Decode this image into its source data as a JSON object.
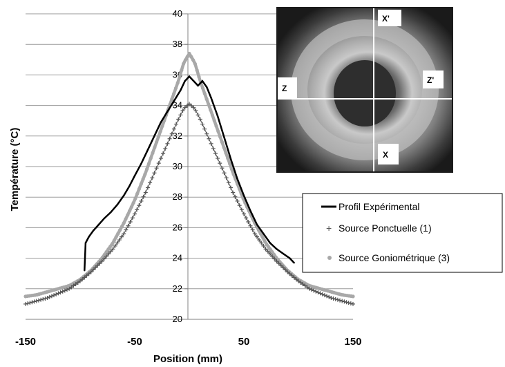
{
  "chart_data": {
    "type": "line",
    "xlabel": "Position (mm)",
    "ylabel": "Température (°C)",
    "xlim": [
      -150,
      150
    ],
    "ylim": [
      20,
      40
    ],
    "x_ticks": [
      "-150",
      "-50",
      "50",
      "150"
    ],
    "x_tick_values": [
      -150,
      -50,
      50,
      150
    ],
    "y_ticks": [
      "20",
      "22",
      "24",
      "26",
      "28",
      "30",
      "32",
      "34",
      "36",
      "38",
      "40"
    ],
    "y_tick_values": [
      20,
      22,
      24,
      26,
      28,
      30,
      32,
      34,
      36,
      38,
      40
    ],
    "grid": "horizontal",
    "legend_position": "right",
    "series": [
      {
        "name": "Profil Expérimental",
        "color": "#000000",
        "marker": "line",
        "x": [
          -96,
          -95,
          -92,
          -88,
          -83,
          -78,
          -72,
          -66,
          -60,
          -55,
          -50,
          -44,
          -38,
          -32,
          -26,
          -20,
          -14,
          -8,
          -4,
          0,
          4,
          8,
          12,
          16,
          20,
          26,
          32,
          38,
          44,
          50,
          56,
          62,
          68,
          74,
          80,
          86,
          92,
          96
        ],
        "y": [
          23.2,
          25.0,
          25.4,
          25.8,
          26.2,
          26.6,
          27.0,
          27.5,
          28.1,
          28.7,
          29.4,
          30.2,
          31.1,
          32.0,
          32.9,
          33.6,
          34.3,
          35.0,
          35.6,
          35.9,
          35.6,
          35.3,
          35.6,
          35.2,
          34.5,
          33.3,
          31.9,
          30.5,
          29.2,
          28.1,
          27.1,
          26.2,
          25.6,
          25.0,
          24.6,
          24.3,
          24.0,
          23.7
        ]
      },
      {
        "name": "Source Ponctuelle (1)",
        "color": "#555555",
        "marker": "plus",
        "x": [
          -150,
          -140,
          -130,
          -120,
          -110,
          -100,
          -90,
          -80,
          -70,
          -60,
          -50,
          -40,
          -30,
          -20,
          -10,
          -5,
          0,
          5,
          10,
          20,
          30,
          40,
          50,
          60,
          70,
          80,
          90,
          100,
          110,
          120,
          130,
          140,
          150
        ],
        "y": [
          21.0,
          21.2,
          21.4,
          21.7,
          22.0,
          22.5,
          23.1,
          23.8,
          24.6,
          25.6,
          26.9,
          28.3,
          29.9,
          31.5,
          33.1,
          33.8,
          34.1,
          33.8,
          33.1,
          31.5,
          29.9,
          28.3,
          26.9,
          25.6,
          24.6,
          23.8,
          23.1,
          22.5,
          22.0,
          21.7,
          21.4,
          21.2,
          21.0
        ]
      },
      {
        "name": "Source Goniométrique (3)",
        "color": "#a8a8a8",
        "marker": "circle",
        "x": [
          -150,
          -140,
          -130,
          -120,
          -110,
          -100,
          -90,
          -80,
          -70,
          -60,
          -50,
          -40,
          -30,
          -20,
          -10,
          -5,
          0,
          5,
          10,
          20,
          30,
          40,
          50,
          60,
          70,
          80,
          90,
          100,
          110,
          120,
          130,
          140,
          150
        ],
        "y": [
          21.5,
          21.6,
          21.8,
          22.0,
          22.2,
          22.6,
          23.2,
          24.0,
          25.0,
          26.3,
          27.8,
          29.6,
          31.6,
          33.6,
          35.6,
          36.8,
          37.4,
          36.8,
          35.6,
          33.6,
          31.6,
          29.6,
          27.8,
          26.3,
          25.0,
          24.0,
          23.2,
          22.6,
          22.2,
          22.0,
          21.8,
          21.6,
          21.5
        ]
      }
    ],
    "inset_image": {
      "description_labels": [
        "X'",
        "Z'",
        "Z",
        "X"
      ]
    }
  }
}
